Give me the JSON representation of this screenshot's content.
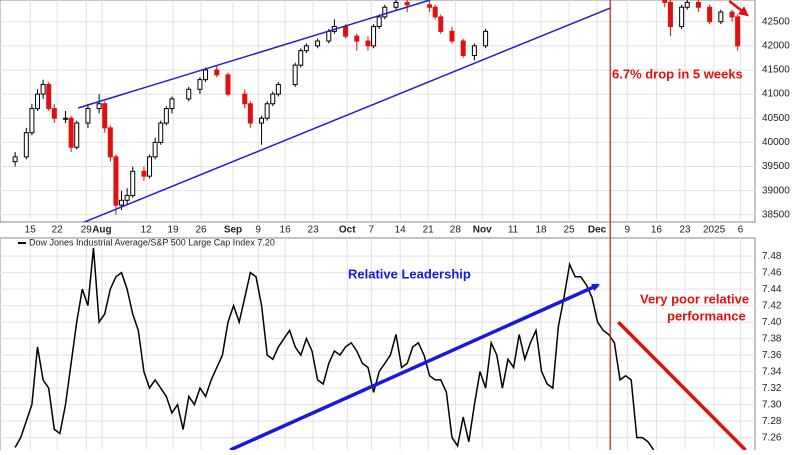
{
  "chart_data": [
    {
      "type": "candlestick",
      "xlim": [
        -2.7,
        132.1
      ],
      "xticks": [
        {
          "value": 2.7,
          "label": "15"
        },
        {
          "value": 7.5,
          "label": "22"
        },
        {
          "value": 12.7,
          "label": "29"
        },
        {
          "value": 15.5,
          "label": "Aug"
        },
        {
          "value": 23.4,
          "label": "12"
        },
        {
          "value": 28.2,
          "label": "19"
        },
        {
          "value": 33.2,
          "label": "26"
        },
        {
          "value": 38.9,
          "label": "Sep"
        },
        {
          "value": 43.4,
          "label": "9"
        },
        {
          "value": 48.2,
          "label": "16"
        },
        {
          "value": 53.2,
          "label": "23"
        },
        {
          "value": 59.3,
          "label": "Oct"
        },
        {
          "value": 63.6,
          "label": "7"
        },
        {
          "value": 68.75,
          "label": "14"
        },
        {
          "value": 73.75,
          "label": "21"
        },
        {
          "value": 78.6,
          "label": "28"
        },
        {
          "value": 83.4,
          "label": "Nov"
        },
        {
          "value": 88.9,
          "label": "11"
        },
        {
          "value": 93.9,
          "label": "18"
        },
        {
          "value": 98.9,
          "label": "25"
        },
        {
          "value": 103.9,
          "label": "Dec"
        },
        {
          "value": 109.3,
          "label": "9"
        },
        {
          "value": 114.5,
          "label": "16"
        },
        {
          "value": 119.6,
          "label": "23"
        },
        {
          "value": 124.8,
          "label": "2025"
        },
        {
          "value": 129.5,
          "label": "6"
        }
      ],
      "ylim": [
        38350,
        42950
      ],
      "yticks": [
        38500,
        39000,
        39500,
        40000,
        40500,
        41000,
        41500,
        42000,
        42500
      ],
      "grid": true,
      "up_color": "#000000",
      "down_color": "#e01010",
      "x": [
        0,
        2,
        3,
        4,
        5,
        6,
        7,
        9,
        10,
        11,
        13,
        15,
        16,
        17,
        18,
        19,
        20,
        21,
        23,
        24,
        25,
        26,
        27,
        28,
        31,
        33,
        34,
        36,
        38,
        41,
        42,
        44,
        45,
        46,
        47,
        50,
        51,
        52,
        54,
        56,
        57,
        59,
        61,
        63,
        64,
        65,
        66,
        68,
        70,
        74,
        75,
        76,
        78,
        80,
        82,
        84,
        116,
        117,
        119,
        120,
        122,
        124,
        126,
        128,
        129
      ],
      "open": [
        39600,
        39700,
        40200,
        40700,
        41000,
        41200,
        40700,
        40500,
        40500,
        39900,
        40400,
        40700,
        40800,
        40300,
        39700,
        38700,
        38800,
        38900,
        39400,
        39300,
        39700,
        40000,
        40400,
        40700,
        40900,
        41100,
        41300,
        41500,
        41400,
        41000,
        40800,
        40400,
        40500,
        40800,
        41000,
        41200,
        41600,
        41900,
        42000,
        42100,
        42300,
        42400,
        42200,
        42100,
        42000,
        42400,
        42600,
        42800,
        42900,
        42850,
        42800,
        42600,
        42300,
        42100,
        41800,
        42000,
        43100,
        42900,
        42400,
        42800,
        42900,
        42800,
        42500,
        42700,
        42600
      ],
      "high": [
        39800,
        40300,
        40800,
        41100,
        41300,
        41250,
        40800,
        40650,
        40550,
        40450,
        40800,
        41000,
        40850,
        40350,
        39750,
        39000,
        39050,
        39500,
        39500,
        39750,
        40100,
        40450,
        40750,
        40950,
        41150,
        41350,
        41550,
        41600,
        41450,
        41100,
        40850,
        40550,
        40850,
        41050,
        41250,
        41650,
        41950,
        42050,
        42150,
        42350,
        42550,
        42450,
        42250,
        42200,
        42450,
        42650,
        42850,
        43050,
        43000,
        42950,
        42850,
        42650,
        42400,
        42150,
        42050,
        42350,
        43150,
        42950,
        42850,
        43000,
        42950,
        42850,
        42750,
        42750,
        42650
      ],
      "low": [
        39500,
        39650,
        40150,
        40650,
        40900,
        40650,
        40400,
        40400,
        39800,
        39850,
        40300,
        40600,
        40200,
        39600,
        38500,
        38600,
        38700,
        38850,
        39200,
        39250,
        39650,
        39950,
        40350,
        40600,
        40850,
        41000,
        41250,
        41350,
        40950,
        40700,
        40300,
        39950,
        40450,
        40750,
        40950,
        41150,
        41550,
        41850,
        41950,
        42050,
        42250,
        42150,
        41900,
        41900,
        41950,
        42350,
        42550,
        42750,
        42700,
        42700,
        42550,
        42250,
        42050,
        41750,
        41700,
        41950,
        42800,
        42200,
        42350,
        42750,
        42700,
        42450,
        42450,
        42500,
        41900
      ],
      "close": [
        39700,
        40200,
        40700,
        41000,
        41200,
        40700,
        40500,
        40500,
        39900,
        40400,
        40700,
        40800,
        40300,
        39700,
        38700,
        38800,
        38900,
        39400,
        39300,
        39700,
        40000,
        40400,
        40700,
        40900,
        41100,
        41300,
        41500,
        41400,
        41000,
        40800,
        40400,
        40500,
        40800,
        41000,
        41200,
        41600,
        41900,
        42000,
        42100,
        42300,
        42400,
        42200,
        42100,
        42000,
        42400,
        42600,
        42800,
        42900,
        42850,
        42800,
        42600,
        42300,
        42100,
        41800,
        42000,
        42300,
        42900,
        42400,
        42800,
        42900,
        42800,
        42500,
        42700,
        42600,
        42000
      ],
      "trendlines": [
        {
          "x": [
            11.25,
            74.1
          ],
          "y": [
            40712,
            42950
          ],
          "color": "#2020d0"
        },
        {
          "x": [
            5.4,
            106.25
          ],
          "y": [
            38020,
            42784
          ],
          "color": "#2020d0"
        }
      ],
      "vline": {
        "x": 106.25,
        "color": "#e01010"
      },
      "arrow": {
        "x": [
          127.5,
          130.6
        ],
        "y": [
          42930,
          42650
        ],
        "color": "#e01010"
      },
      "annotation": "6.7% drop in 5 weeks"
    },
    {
      "type": "line",
      "xlim": [
        -2.7,
        132.1
      ],
      "ylim": [
        7.245,
        7.502
      ],
      "yticks": [
        7.26,
        7.28,
        {
          "value": 7.3,
          "label": "7.30"
        },
        7.32,
        7.34,
        7.36,
        7.38,
        {
          "value": 7.4,
          "label": "7.40"
        },
        7.42,
        7.44,
        7.46,
        7.48
      ],
      "grid": true,
      "series": [
        {
          "name": "Dow Jones Industrial Average/S&P 500 Large Cap Index 7.20",
          "color": "#000000",
          "x": [
            0,
            1,
            2,
            3,
            4,
            5,
            6,
            7,
            8,
            9,
            10,
            11,
            12,
            13,
            14,
            15,
            16,
            17,
            18,
            19,
            20,
            21,
            22,
            23,
            24,
            25,
            26,
            27,
            28,
            29,
            30,
            31,
            32,
            33,
            34,
            35,
            36,
            37,
            38,
            39,
            40,
            41,
            42,
            43,
            44,
            45,
            46,
            47,
            48,
            49,
            50,
            51,
            52,
            53,
            54,
            55,
            56,
            57,
            58,
            59,
            60,
            61,
            62,
            63,
            64,
            65,
            66,
            67,
            68,
            69,
            70,
            71,
            72,
            73,
            74,
            75,
            76,
            77,
            78,
            79,
            80,
            81,
            82,
            83,
            84,
            85,
            86,
            87,
            88,
            89,
            90,
            91,
            92,
            93,
            94,
            95,
            96,
            97,
            98,
            99,
            100,
            101,
            102,
            103,
            104,
            105,
            106,
            107,
            108,
            109,
            110,
            111,
            112,
            113,
            114
          ],
          "values": [
            7.248,
            7.26,
            7.28,
            7.3,
            7.37,
            7.33,
            7.32,
            7.27,
            7.265,
            7.3,
            7.35,
            7.4,
            7.44,
            7.42,
            7.49,
            7.4,
            7.41,
            7.44,
            7.455,
            7.46,
            7.44,
            7.41,
            7.39,
            7.34,
            7.32,
            7.33,
            7.32,
            7.31,
            7.29,
            7.3,
            7.27,
            7.31,
            7.3,
            7.32,
            7.31,
            7.33,
            7.345,
            7.36,
            7.4,
            7.42,
            7.4,
            7.43,
            7.46,
            7.455,
            7.42,
            7.36,
            7.355,
            7.37,
            7.38,
            7.39,
            7.37,
            7.36,
            7.38,
            7.365,
            7.33,
            7.325,
            7.35,
            7.365,
            7.36,
            7.37,
            7.375,
            7.365,
            7.35,
            7.345,
            7.315,
            7.34,
            7.35,
            7.36,
            7.385,
            7.345,
            7.35,
            7.37,
            7.375,
            7.36,
            7.335,
            7.33,
            7.33,
            7.315,
            7.26,
            7.25,
            7.285,
            7.255,
            7.3,
            7.34,
            7.32,
            7.375,
            7.36,
            7.32,
            7.355,
            7.345,
            7.385,
            7.355,
            7.375,
            7.39,
            7.34,
            7.325,
            7.32,
            7.395,
            7.43,
            7.47,
            7.455,
            7.455,
            7.445,
            7.43,
            7.4,
            7.39,
            7.385,
            7.375,
            7.33,
            7.335,
            7.33,
            7.26,
            7.26,
            7.255,
            7.245
          ]
        }
      ],
      "trendlines": [
        {
          "x": [
            38.4,
            104.1
          ],
          "y": [
            7.245,
            7.445
          ],
          "color": "#1818e0",
          "arrow": true
        },
        {
          "x": [
            107.7,
            130.4
          ],
          "y": [
            7.4,
            7.245
          ],
          "color": "#e01010",
          "arrow": false
        }
      ],
      "annotations": [
        "Relative Leadership",
        "Very poor relative",
        "performance"
      ]
    }
  ]
}
